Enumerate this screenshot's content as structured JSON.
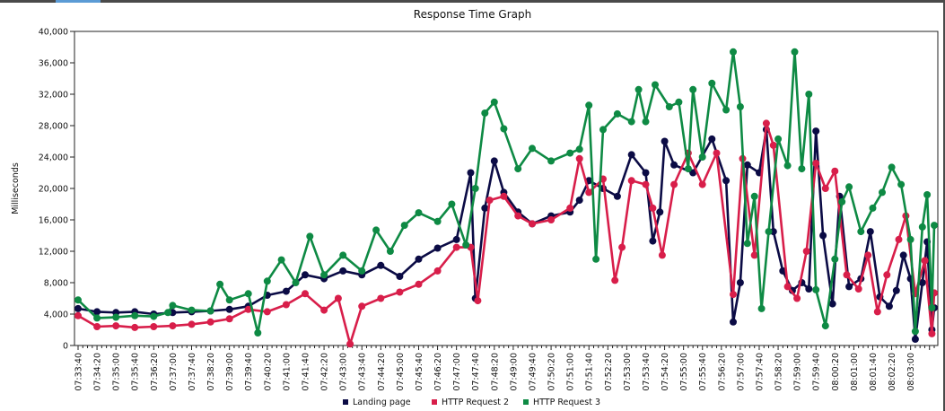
{
  "chart_data": {
    "type": "line",
    "title": "Response Time Graph",
    "xlabel": "",
    "ylabel": "Milliseconds",
    "ylim": [
      0,
      40000
    ],
    "yticks": [
      0,
      4000,
      8000,
      12000,
      16000,
      20000,
      24000,
      28000,
      32000,
      36000,
      40000
    ],
    "ytick_labels": [
      "0",
      "4,000",
      "8,000",
      "12,000",
      "16,000",
      "20,000",
      "24,000",
      "28,000",
      "32,000",
      "36,000",
      "40,000"
    ],
    "x_tick_labels": [
      "07:33:40",
      "07:34:20",
      "07:35:00",
      "07:35:40",
      "07:36:20",
      "07:37:00",
      "07:37:40",
      "07:38:20",
      "07:39:00",
      "07:39:40",
      "07:40:20",
      "07:41:00",
      "07:41:40",
      "07:42:20",
      "07:43:00",
      "07:43:40",
      "07:44:20",
      "07:45:00",
      "07:45:40",
      "07:46:20",
      "07:47:00",
      "07:47:40",
      "07:48:20",
      "07:49:00",
      "07:49:40",
      "07:50:20",
      "07:51:00",
      "07:51:40",
      "07:52:20",
      "07:53:00",
      "07:53:40",
      "07:54:20",
      "07:55:00",
      "07:55:40",
      "07:56:20",
      "07:57:00",
      "07:57:40",
      "07:58:20",
      "07:59:00",
      "07:59:40",
      "08:00:20",
      "08:01:00",
      "08:01:40",
      "08:02:20",
      "08:03:00"
    ],
    "x_range_seconds": [
      0,
      1810
    ],
    "grid": false,
    "legend": "bottom",
    "series": [
      {
        "name": "Landing page",
        "color": "#0b0b45",
        "points": [
          [
            0,
            4700
          ],
          [
            40,
            4300
          ],
          [
            80,
            4200
          ],
          [
            120,
            4300
          ],
          [
            160,
            4000
          ],
          [
            200,
            4200
          ],
          [
            240,
            4300
          ],
          [
            280,
            4400
          ],
          [
            320,
            4600
          ],
          [
            360,
            5000
          ],
          [
            400,
            6400
          ],
          [
            440,
            6900
          ],
          [
            480,
            9000
          ],
          [
            520,
            8500
          ],
          [
            560,
            9500
          ],
          [
            600,
            9000
          ],
          [
            640,
            10200
          ],
          [
            680,
            8800
          ],
          [
            720,
            11000
          ],
          [
            760,
            12400
          ],
          [
            800,
            13500
          ],
          [
            830,
            22000
          ],
          [
            840,
            6000
          ],
          [
            860,
            17500
          ],
          [
            880,
            23500
          ],
          [
            900,
            19500
          ],
          [
            930,
            17000
          ],
          [
            960,
            15500
          ],
          [
            1000,
            16500
          ],
          [
            1040,
            17000
          ],
          [
            1060,
            18500
          ],
          [
            1080,
            21000
          ],
          [
            1110,
            20000
          ],
          [
            1140,
            19000
          ],
          [
            1170,
            24300
          ],
          [
            1200,
            22000
          ],
          [
            1215,
            13300
          ],
          [
            1230,
            17000
          ],
          [
            1240,
            26000
          ],
          [
            1260,
            23000
          ],
          [
            1300,
            22000
          ],
          [
            1340,
            26300
          ],
          [
            1370,
            21000
          ],
          [
            1385,
            3000
          ],
          [
            1400,
            8000
          ],
          [
            1415,
            23000
          ],
          [
            1440,
            22000
          ],
          [
            1455,
            27500
          ],
          [
            1470,
            14500
          ],
          [
            1490,
            9500
          ],
          [
            1510,
            7000
          ],
          [
            1530,
            8000
          ],
          [
            1545,
            7200
          ],
          [
            1560,
            27300
          ],
          [
            1575,
            14000
          ],
          [
            1595,
            5300
          ],
          [
            1610,
            19000
          ],
          [
            1630,
            7500
          ],
          [
            1655,
            8500
          ],
          [
            1675,
            14500
          ],
          [
            1695,
            6200
          ],
          [
            1715,
            5000
          ],
          [
            1730,
            7000
          ],
          [
            1745,
            11500
          ],
          [
            1760,
            8500
          ],
          [
            1770,
            800
          ],
          [
            1785,
            8000
          ],
          [
            1795,
            13200
          ],
          [
            1805,
            2000
          ],
          [
            1810,
            4800
          ]
        ]
      },
      {
        "name": "HTTP Request 2",
        "color": "#d81e4a",
        "points": [
          [
            0,
            3800
          ],
          [
            40,
            2400
          ],
          [
            80,
            2500
          ],
          [
            120,
            2300
          ],
          [
            160,
            2400
          ],
          [
            200,
            2500
          ],
          [
            240,
            2700
          ],
          [
            280,
            3000
          ],
          [
            320,
            3400
          ],
          [
            360,
            4600
          ],
          [
            400,
            4300
          ],
          [
            440,
            5200
          ],
          [
            480,
            6600
          ],
          [
            520,
            4500
          ],
          [
            550,
            6000
          ],
          [
            575,
            200
          ],
          [
            600,
            5000
          ],
          [
            640,
            6000
          ],
          [
            680,
            6800
          ],
          [
            720,
            7800
          ],
          [
            760,
            9500
          ],
          [
            800,
            12500
          ],
          [
            830,
            12500
          ],
          [
            845,
            5700
          ],
          [
            870,
            18500
          ],
          [
            900,
            19000
          ],
          [
            930,
            16500
          ],
          [
            960,
            15500
          ],
          [
            1000,
            16000
          ],
          [
            1040,
            17500
          ],
          [
            1060,
            23800
          ],
          [
            1080,
            19500
          ],
          [
            1110,
            21200
          ],
          [
            1135,
            8300
          ],
          [
            1150,
            12500
          ],
          [
            1170,
            21000
          ],
          [
            1200,
            20500
          ],
          [
            1215,
            17500
          ],
          [
            1235,
            11500
          ],
          [
            1260,
            20500
          ],
          [
            1290,
            24500
          ],
          [
            1320,
            20500
          ],
          [
            1350,
            24500
          ],
          [
            1385,
            6500
          ],
          [
            1405,
            23800
          ],
          [
            1430,
            11500
          ],
          [
            1455,
            28300
          ],
          [
            1470,
            25500
          ],
          [
            1500,
            7500
          ],
          [
            1520,
            6000
          ],
          [
            1540,
            12000
          ],
          [
            1560,
            23200
          ],
          [
            1580,
            20000
          ],
          [
            1600,
            22200
          ],
          [
            1625,
            9000
          ],
          [
            1650,
            7200
          ],
          [
            1670,
            11500
          ],
          [
            1690,
            4300
          ],
          [
            1710,
            9000
          ],
          [
            1735,
            13500
          ],
          [
            1750,
            16500
          ],
          [
            1770,
            6600
          ],
          [
            1790,
            10800
          ],
          [
            1805,
            1500
          ],
          [
            1810,
            6700
          ]
        ]
      },
      {
        "name": "HTTP Request 3",
        "color": "#0e8a44",
        "points": [
          [
            0,
            5800
          ],
          [
            40,
            3500
          ],
          [
            80,
            3600
          ],
          [
            120,
            3800
          ],
          [
            160,
            3700
          ],
          [
            190,
            4200
          ],
          [
            200,
            5100
          ],
          [
            240,
            4500
          ],
          [
            280,
            4400
          ],
          [
            300,
            7800
          ],
          [
            320,
            5800
          ],
          [
            360,
            6600
          ],
          [
            380,
            1600
          ],
          [
            400,
            8200
          ],
          [
            430,
            10900
          ],
          [
            460,
            8000
          ],
          [
            490,
            13900
          ],
          [
            520,
            9000
          ],
          [
            560,
            11500
          ],
          [
            600,
            9500
          ],
          [
            630,
            14700
          ],
          [
            660,
            12000
          ],
          [
            690,
            15300
          ],
          [
            720,
            16900
          ],
          [
            760,
            15800
          ],
          [
            790,
            18000
          ],
          [
            820,
            12800
          ],
          [
            840,
            20000
          ],
          [
            860,
            29600
          ],
          [
            880,
            31000
          ],
          [
            900,
            27600
          ],
          [
            930,
            22500
          ],
          [
            960,
            25100
          ],
          [
            1000,
            23500
          ],
          [
            1040,
            24500
          ],
          [
            1060,
            25000
          ],
          [
            1080,
            30600
          ],
          [
            1095,
            11000
          ],
          [
            1110,
            27500
          ],
          [
            1140,
            29500
          ],
          [
            1170,
            28500
          ],
          [
            1185,
            32600
          ],
          [
            1200,
            28500
          ],
          [
            1220,
            33200
          ],
          [
            1250,
            30400
          ],
          [
            1270,
            31000
          ],
          [
            1290,
            22500
          ],
          [
            1300,
            32600
          ],
          [
            1320,
            24000
          ],
          [
            1340,
            33400
          ],
          [
            1370,
            30000
          ],
          [
            1385,
            37400
          ],
          [
            1400,
            30400
          ],
          [
            1415,
            13000
          ],
          [
            1430,
            19000
          ],
          [
            1445,
            4700
          ],
          [
            1460,
            14500
          ],
          [
            1480,
            26300
          ],
          [
            1500,
            22900
          ],
          [
            1515,
            37400
          ],
          [
            1530,
            22500
          ],
          [
            1545,
            32000
          ],
          [
            1560,
            7100
          ],
          [
            1580,
            2500
          ],
          [
            1600,
            11000
          ],
          [
            1615,
            18300
          ],
          [
            1630,
            20200
          ],
          [
            1655,
            14500
          ],
          [
            1680,
            17500
          ],
          [
            1700,
            19500
          ],
          [
            1720,
            22700
          ],
          [
            1740,
            20500
          ],
          [
            1760,
            13500
          ],
          [
            1770,
            1800
          ],
          [
            1785,
            15100
          ],
          [
            1795,
            19200
          ],
          [
            1805,
            4800
          ],
          [
            1810,
            15300
          ]
        ]
      }
    ]
  }
}
